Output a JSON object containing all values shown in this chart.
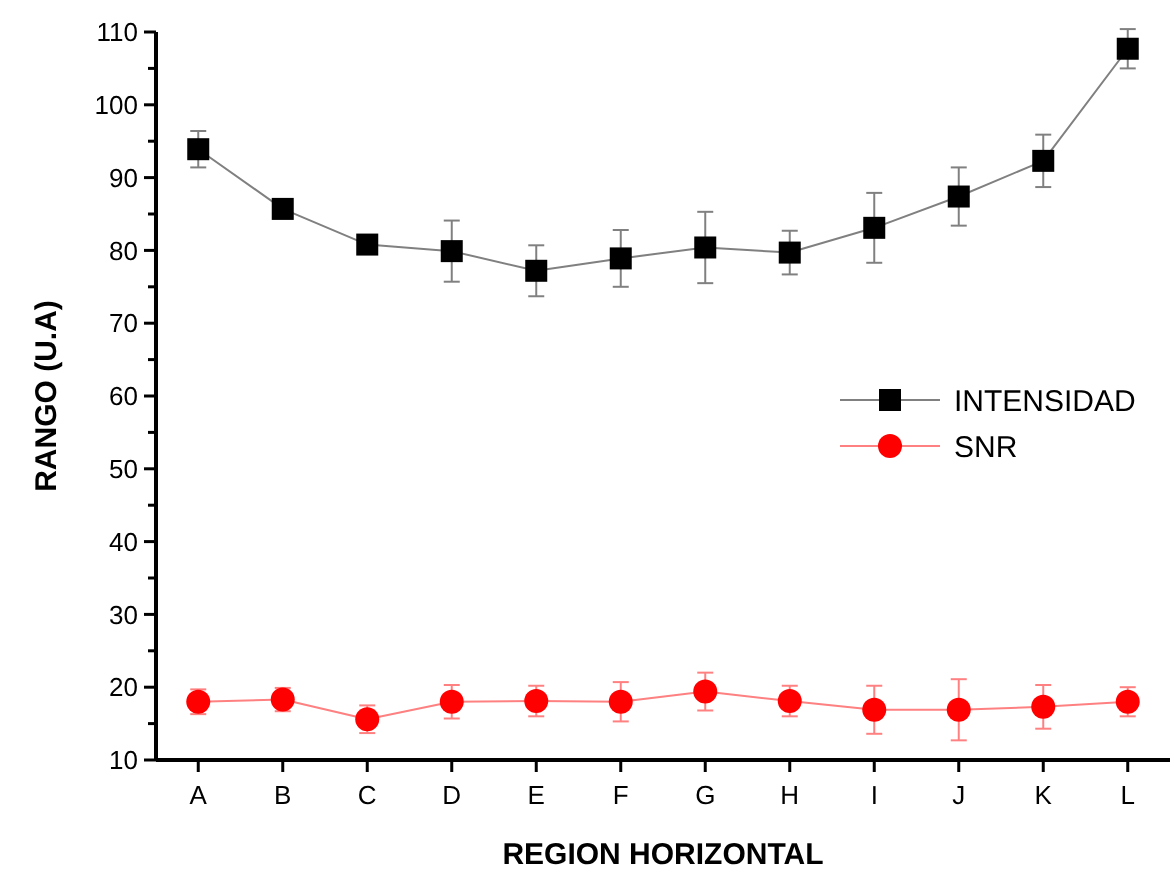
{
  "chart_data": {
    "type": "line",
    "xlabel": "REGION HORIZONTAL",
    "ylabel": "RANGO (U.A)",
    "categories": [
      "A",
      "B",
      "C",
      "D",
      "E",
      "F",
      "G",
      "H",
      "I",
      "J",
      "K",
      "L"
    ],
    "ylim": [
      10,
      110
    ],
    "yticks": [
      10,
      20,
      30,
      40,
      50,
      60,
      70,
      80,
      90,
      100,
      110
    ],
    "grid": false,
    "legend": "right",
    "series": [
      {
        "name": "INTENSIDAD",
        "color": "#000000",
        "marker": "square",
        "values": [
          93.9,
          85.7,
          80.8,
          79.9,
          77.2,
          78.9,
          80.4,
          79.7,
          83.1,
          87.4,
          92.3,
          107.7
        ],
        "errors": [
          2.5,
          null,
          1.2,
          4.2,
          3.5,
          3.9,
          4.9,
          3.0,
          4.8,
          4.0,
          3.6,
          2.7
        ]
      },
      {
        "name": "SNR",
        "color": "#ff0000",
        "marker": "circle",
        "values": [
          18.0,
          18.3,
          15.6,
          18.0,
          18.1,
          18.0,
          19.4,
          18.1,
          16.9,
          16.9,
          17.3,
          18.0
        ],
        "errors": [
          1.7,
          1.6,
          1.9,
          2.3,
          2.1,
          2.7,
          2.6,
          2.1,
          3.3,
          4.2,
          3.0,
          2.0
        ]
      }
    ]
  }
}
